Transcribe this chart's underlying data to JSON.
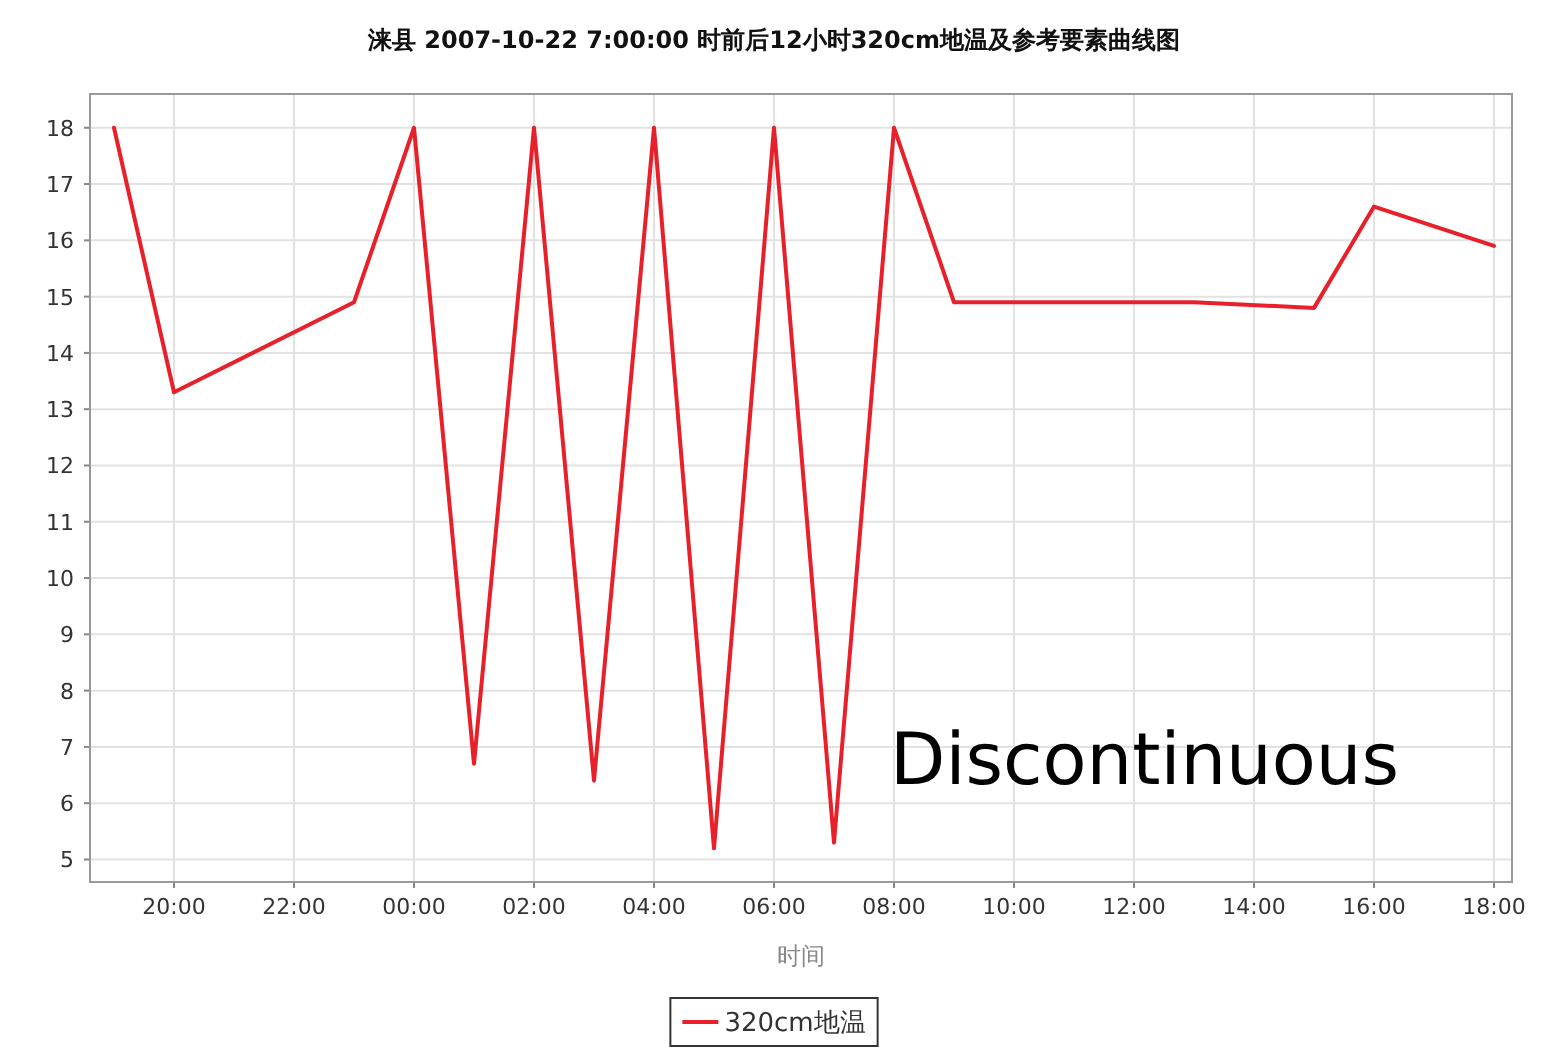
{
  "chart_data": {
    "type": "line",
    "title": "涞县 2007-10-22 7:00:00 时前后12小时320cm地温及参考要素曲线图",
    "xlabel": "时间",
    "x": [
      "2007-10-21T19:00",
      "2007-10-21T20:00",
      "2007-10-21T23:00",
      "2007-10-22T00:00",
      "2007-10-22T01:00",
      "2007-10-22T02:00",
      "2007-10-22T03:00",
      "2007-10-22T04:00",
      "2007-10-22T05:00",
      "2007-10-22T06:00",
      "2007-10-22T07:00",
      "2007-10-22T08:00",
      "2007-10-22T09:00",
      "2007-10-22T13:00",
      "2007-10-22T15:00",
      "2007-10-22T16:00",
      "2007-10-22T18:00"
    ],
    "series": [
      {
        "name": "320cm地温",
        "color": "#e8202a",
        "values": [
          18,
          13.3,
          14.9,
          18,
          6.7,
          18,
          6.4,
          18,
          5.2,
          18,
          5.3,
          18,
          14.9,
          14.9,
          14.8,
          16.6,
          15.9
        ]
      }
    ],
    "xlim": [
      "2007-10-21T18:36",
      "2007-10-22T18:18"
    ],
    "xticks": [
      {
        "value": "2007-10-21T20:00",
        "label": "20:00"
      },
      {
        "value": "2007-10-21T22:00",
        "label": "22:00"
      },
      {
        "value": "2007-10-22T00:00",
        "label": "00:00"
      },
      {
        "value": "2007-10-22T02:00",
        "label": "02:00"
      },
      {
        "value": "2007-10-22T04:00",
        "label": "04:00"
      },
      {
        "value": "2007-10-22T06:00",
        "label": "06:00"
      },
      {
        "value": "2007-10-22T08:00",
        "label": "08:00"
      },
      {
        "value": "2007-10-22T10:00",
        "label": "10:00"
      },
      {
        "value": "2007-10-22T12:00",
        "label": "12:00"
      },
      {
        "value": "2007-10-22T14:00",
        "label": "14:00"
      },
      {
        "value": "2007-10-22T16:00",
        "label": "16:00"
      },
      {
        "value": "2007-10-22T18:00",
        "label": "18:00"
      }
    ],
    "ylim": [
      4.6,
      18.6
    ],
    "yticks": [
      5,
      6,
      7,
      8,
      9,
      10,
      11,
      12,
      13,
      14,
      15,
      16,
      17,
      18
    ],
    "grid": true,
    "legend": "bottom",
    "marker": "none",
    "line_style": "solid",
    "annotations": [
      "Discontinuous"
    ]
  }
}
